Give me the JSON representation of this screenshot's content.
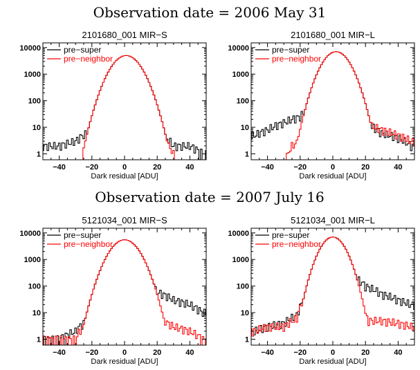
{
  "figure": {
    "observation_titles": [
      "Observation date = 2006 May 31",
      "Observation date = 2007 July 16"
    ]
  },
  "colors": {
    "pre_super": "#000000",
    "pre_neighbor": "#ff0000",
    "frame": "#000000"
  },
  "chart_data": [
    {
      "type": "line",
      "title": "2101680_001 MIR−S",
      "xlabel": "Dark residual [ADU]",
      "ylabel": "",
      "xlim": [
        -50,
        50
      ],
      "ylim": [
        0.6,
        15000
      ],
      "yscale": "log",
      "xticks": [
        -40,
        -20,
        0,
        20,
        40
      ],
      "xtick_labels": [
        "−40",
        "−20",
        "0",
        "20",
        "40"
      ],
      "yticks": [
        1,
        10,
        100,
        1000,
        10000
      ],
      "ytick_labels": [
        "1",
        "10",
        "100",
        "1000",
        "10000"
      ],
      "legend": {
        "position": "top-left",
        "entries": [
          "pre−super",
          "pre−neighbor"
        ]
      },
      "profile": {
        "peak": 5000,
        "center": 1,
        "sigma": 6.5
      },
      "series": [
        {
          "name": "pre−super",
          "color": "#000000",
          "tails": {
            "left": [
              [
                -48,
                2
              ],
              [
                -40,
                2
              ],
              [
                -30,
                3
              ],
              [
                -23,
                6
              ],
              [
                -20,
                12
              ]
            ],
            "right": [
              [
                21,
                12
              ],
              [
                23,
                5
              ],
              [
                30,
                2
              ],
              [
                40,
                2
              ],
              [
                48,
                1
              ]
            ]
          }
        },
        {
          "name": "pre−neighbor",
          "color": "#ff0000",
          "tails": {
            "left": [
              [
                -20,
                0
              ],
              [
                -19,
                2
              ],
              [
                -17,
                10
              ]
            ],
            "right": [
              [
                18,
                20
              ],
              [
                22,
                8
              ],
              [
                27,
                2
              ],
              [
                33,
                0
              ]
            ]
          }
        }
      ]
    },
    {
      "type": "line",
      "title": "2101680_001 MIR−L",
      "xlabel": "Dark residual [ADU]",
      "ylabel": "",
      "xlim": [
        -50,
        50
      ],
      "ylim": [
        0.6,
        15000
      ],
      "yscale": "log",
      "xticks": [
        -40,
        -20,
        0,
        20,
        40
      ],
      "xtick_labels": [
        "−40",
        "−20",
        "0",
        "20",
        "40"
      ],
      "yticks": [
        1,
        10,
        100,
        1000,
        10000
      ],
      "ytick_labels": [
        "1",
        "10",
        "100",
        "1000",
        "10000"
      ],
      "legend": {
        "position": "top-left",
        "entries": [
          "pre−super",
          "pre−neighbor"
        ]
      },
      "profile": {
        "peak": 7000,
        "center": 2,
        "sigma": 6
      },
      "series": [
        {
          "name": "pre−super",
          "color": "#000000",
          "tails": {
            "left": [
              [
                -48,
                5
              ],
              [
                -40,
                8
              ],
              [
                -30,
                15
              ],
              [
                -20,
                25
              ],
              [
                -15,
                50
              ]
            ],
            "right": [
              [
                16,
                50
              ],
              [
                22,
                12
              ],
              [
                30,
                6
              ],
              [
                40,
                4
              ],
              [
                48,
                2
              ]
            ]
          }
        },
        {
          "name": "pre−neighbor",
          "color": "#ff0000",
          "tails": {
            "left": [
              [
                -30,
                0
              ],
              [
                -25,
                2
              ],
              [
                -20,
                3
              ],
              [
                -15,
                10
              ]
            ],
            "right": [
              [
                16,
                30
              ],
              [
                22,
                12
              ],
              [
                30,
                8
              ],
              [
                40,
                5
              ],
              [
                48,
                3
              ]
            ]
          }
        }
      ]
    },
    {
      "type": "line",
      "title": "5121034_001 MIR−S",
      "xlabel": "Dark residual [ADU]",
      "ylabel": "",
      "xlim": [
        -50,
        50
      ],
      "ylim": [
        0.6,
        15000
      ],
      "yscale": "log",
      "xticks": [
        -40,
        -20,
        0,
        20,
        40
      ],
      "xtick_labels": [
        "−40",
        "−20",
        "0",
        "20",
        "40"
      ],
      "yticks": [
        1,
        10,
        100,
        1000,
        10000
      ],
      "ytick_labels": [
        "1",
        "10",
        "100",
        "1000",
        "10000"
      ],
      "legend": {
        "position": "top-left",
        "entries": [
          "pre−super",
          "pre−neighbor"
        ]
      },
      "profile": {
        "peak": 5500,
        "center": 0,
        "sigma": 6.5
      },
      "series": [
        {
          "name": "pre−super",
          "color": "#000000",
          "tails": {
            "left": [
              [
                -48,
                1
              ],
              [
                -40,
                1
              ],
              [
                -30,
                2
              ],
              [
                -25,
                4
              ],
              [
                -20,
                15
              ]
            ],
            "right": [
              [
                14,
                120
              ],
              [
                20,
                60
              ],
              [
                30,
                30
              ],
              [
                40,
                20
              ],
              [
                48,
                10
              ]
            ]
          }
        },
        {
          "name": "pre−neighbor",
          "color": "#ff0000",
          "tails": {
            "left": [
              [
                -48,
                1
              ],
              [
                -30,
                1
              ],
              [
                -25,
                3
              ],
              [
                -20,
                15
              ]
            ],
            "right": [
              [
                14,
                30
              ],
              [
                20,
                6
              ],
              [
                30,
                3
              ],
              [
                40,
                2
              ],
              [
                48,
                1
              ]
            ]
          }
        }
      ]
    },
    {
      "type": "line",
      "title": "5121034_001 MIR−L",
      "xlabel": "Dark residual [ADU]",
      "ylabel": "",
      "xlim": [
        -50,
        50
      ],
      "ylim": [
        0.6,
        15000
      ],
      "yscale": "log",
      "xticks": [
        -40,
        -20,
        0,
        20,
        40
      ],
      "xtick_labels": [
        "−40",
        "−20",
        "0",
        "20",
        "40"
      ],
      "yticks": [
        1,
        10,
        100,
        1000,
        10000
      ],
      "ytick_labels": [
        "1",
        "10",
        "100",
        "1000",
        "10000"
      ],
      "legend": {
        "position": "top-left",
        "entries": [
          "pre−super",
          "pre−neighbor"
        ]
      },
      "profile": {
        "peak": 7000,
        "center": 0,
        "sigma": 5.5
      },
      "series": [
        {
          "name": "pre−super",
          "color": "#000000",
          "tails": {
            "left": [
              [
                -48,
                2
              ],
              [
                -40,
                3
              ],
              [
                -30,
                4
              ],
              [
                -22,
                8
              ],
              [
                -15,
                40
              ]
            ],
            "right": [
              [
                14,
                200
              ],
              [
                20,
                100
              ],
              [
                30,
                50
              ],
              [
                40,
                30
              ],
              [
                48,
                20
              ]
            ]
          }
        },
        {
          "name": "pre−neighbor",
          "color": "#ff0000",
          "tails": {
            "left": [
              [
                -48,
                2
              ],
              [
                -40,
                3
              ],
              [
                -30,
                3
              ],
              [
                -22,
                6
              ],
              [
                -15,
                40
              ]
            ],
            "right": [
              [
                12,
                60
              ],
              [
                16,
                12
              ],
              [
                22,
                5
              ],
              [
                30,
                5
              ],
              [
                40,
                4
              ],
              [
                48,
                3
              ]
            ]
          }
        }
      ]
    }
  ]
}
